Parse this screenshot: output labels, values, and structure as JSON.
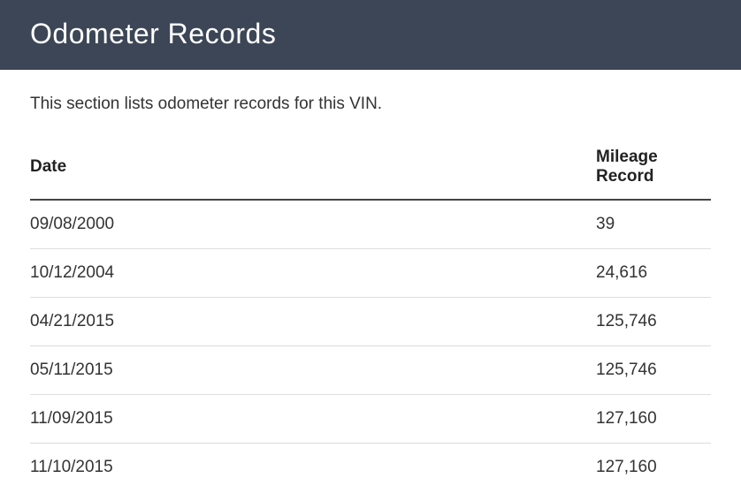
{
  "header": {
    "title": "Odometer Records"
  },
  "description": "This section lists odometer records for this VIN.",
  "table": {
    "columns": [
      "Date",
      "Mileage Record"
    ],
    "rows": [
      {
        "date": "09/08/2000",
        "mileage": "39"
      },
      {
        "date": "10/12/2004",
        "mileage": "24,616"
      },
      {
        "date": "04/21/2015",
        "mileage": "125,746"
      },
      {
        "date": "05/11/2015",
        "mileage": "125,746"
      },
      {
        "date": "11/09/2015",
        "mileage": "127,160"
      },
      {
        "date": "11/10/2015",
        "mileage": "127,160"
      }
    ]
  },
  "styling": {
    "header_bg": "#3c4656",
    "header_text_color": "#ffffff",
    "body_bg": "#ffffff",
    "text_color": "#333333",
    "border_color_header": "#444444",
    "border_color_row": "#dddddd",
    "title_fontsize": 32,
    "body_fontsize": 19
  }
}
